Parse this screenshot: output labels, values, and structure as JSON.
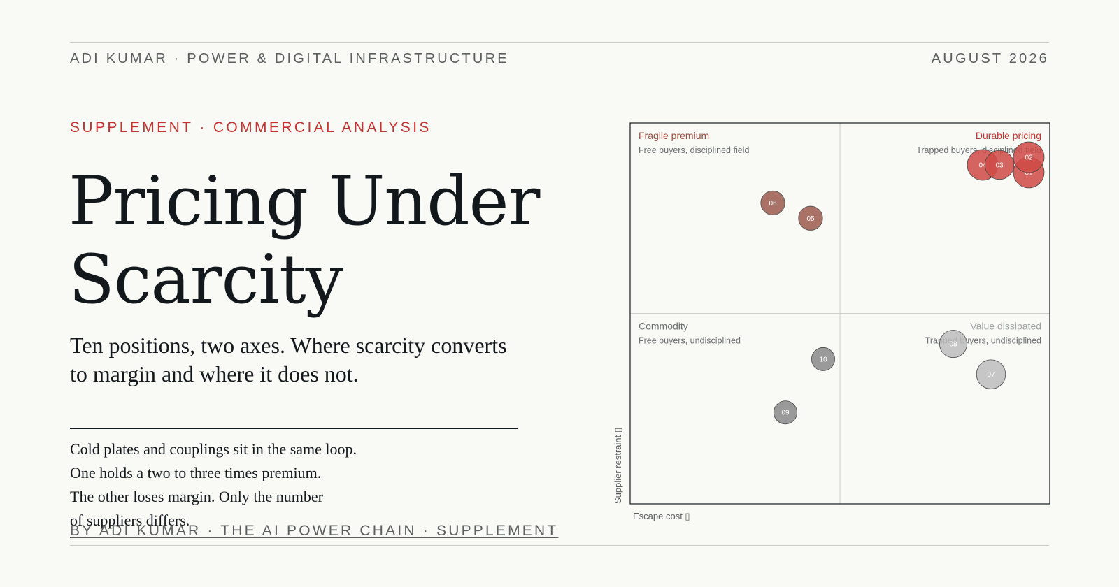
{
  "masthead": {
    "left": "ADI KUMAR · POWER & DIGITAL INFRASTRUCTURE",
    "right": "AUGUST 2026"
  },
  "kicker": "SUPPLEMENT · COMMERCIAL ANALYSIS",
  "title": "Pricing Under Scarcity",
  "subtitle": "Ten positions, two axes. Where scarcity converts to margin and where it does not.",
  "body_lines": [
    "Cold plates and couplings sit in the same loop.",
    "One holds a two to three times premium.",
    "The other loses margin. Only the number",
    "of suppliers differs."
  ],
  "byline": "BY ADI KUMAR · THE AI POWER CHAIN · SUPPLEMENT",
  "colors": {
    "durable": "#cf4a47",
    "fragile": "#9c5a4c",
    "commodity": "#8a8a8a",
    "dissipated": "#bdbdbd",
    "title_red": "#c73230",
    "title_brown": "#9c4a3c",
    "title_gray": "#6b6e70",
    "title_lightgray": "#a0a2a4"
  },
  "chart_data": {
    "type": "scatter",
    "xlabel": "Escape cost ▯",
    "ylabel": "Supplier restraint ▯",
    "xlim": [
      0,
      10
    ],
    "ylim": [
      0,
      10
    ],
    "quadrants": [
      {
        "id": "fragile",
        "title": "Fragile premium",
        "subtitle": "Free buyers, disciplined field",
        "position": "top-left",
        "color_key": "title_brown"
      },
      {
        "id": "durable",
        "title": "Durable pricing",
        "subtitle": "Trapped buyers, disciplined field",
        "position": "top-right",
        "color_key": "title_red"
      },
      {
        "id": "commodity",
        "title": "Commodity",
        "subtitle": "Free buyers, undisciplined",
        "position": "bottom-left",
        "color_key": "title_gray"
      },
      {
        "id": "dissipated",
        "title": "Value dissipated",
        "subtitle": "Trapped buyers, undisciplined",
        "position": "bottom-right",
        "color_key": "title_lightgray"
      }
    ],
    "points": [
      {
        "label": "01",
        "x": 9.5,
        "y": 8.7,
        "size": 1.0,
        "group": "durable"
      },
      {
        "label": "02",
        "x": 9.5,
        "y": 9.1,
        "size": 1.0,
        "group": "durable"
      },
      {
        "label": "03",
        "x": 8.8,
        "y": 8.9,
        "size": 0.9,
        "group": "durable"
      },
      {
        "label": "04",
        "x": 8.4,
        "y": 8.9,
        "size": 1.0,
        "group": "durable"
      },
      {
        "label": "05",
        "x": 4.3,
        "y": 7.5,
        "size": 0.6,
        "group": "fragile"
      },
      {
        "label": "06",
        "x": 3.4,
        "y": 7.9,
        "size": 0.6,
        "group": "fragile"
      },
      {
        "label": "07",
        "x": 8.6,
        "y": 3.4,
        "size": 0.9,
        "group": "dissipated"
      },
      {
        "label": "08",
        "x": 7.7,
        "y": 4.2,
        "size": 0.8,
        "group": "dissipated"
      },
      {
        "label": "09",
        "x": 3.7,
        "y": 2.4,
        "size": 0.55,
        "group": "commodity"
      },
      {
        "label": "10",
        "x": 4.6,
        "y": 3.8,
        "size": 0.55,
        "group": "commodity"
      }
    ]
  }
}
